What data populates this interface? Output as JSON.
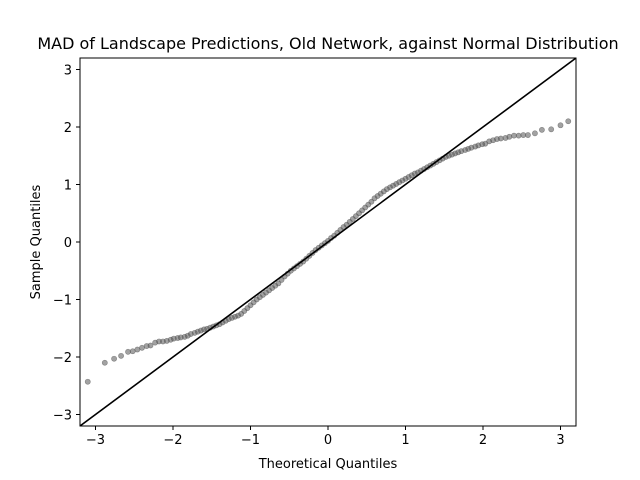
{
  "chart_data": {
    "type": "scatter",
    "title": "MAD of Landscape Predictions, Old Network, against Normal Distribution",
    "xlabel": "Theoretical Quantiles",
    "ylabel": "Sample Quantiles",
    "xlim": [
      -3.2,
      3.2
    ],
    "ylim": [
      -3.2,
      3.2
    ],
    "xticks": [
      "−3",
      "−2",
      "−1",
      "0",
      "1",
      "2",
      "3"
    ],
    "yticks": [
      "−3",
      "−2",
      "−1",
      "0",
      "1",
      "2",
      "3"
    ],
    "grid": false,
    "reference_line": {
      "slope": 1,
      "intercept": 0,
      "color": "#000000"
    },
    "marker_color": "#555555",
    "points": [
      [
        -3.1,
        -2.43
      ],
      [
        -2.88,
        -2.1
      ],
      [
        -2.76,
        -2.03
      ],
      [
        -2.67,
        -1.98
      ],
      [
        -2.58,
        -1.91
      ],
      [
        -2.52,
        -1.9
      ],
      [
        -2.46,
        -1.87
      ],
      [
        -2.4,
        -1.84
      ],
      [
        -2.34,
        -1.81
      ],
      [
        -2.29,
        -1.8
      ],
      [
        -2.23,
        -1.75
      ],
      [
        -2.18,
        -1.73
      ],
      [
        -2.13,
        -1.73
      ],
      [
        -2.08,
        -1.72
      ],
      [
        -2.03,
        -1.7
      ],
      [
        -1.99,
        -1.68
      ],
      [
        -1.94,
        -1.67
      ],
      [
        -1.9,
        -1.66
      ],
      [
        -1.85,
        -1.65
      ],
      [
        -1.81,
        -1.63
      ],
      [
        -1.77,
        -1.6
      ],
      [
        -1.72,
        -1.58
      ],
      [
        -1.68,
        -1.56
      ],
      [
        -1.64,
        -1.54
      ],
      [
        -1.6,
        -1.52
      ],
      [
        -1.56,
        -1.51
      ],
      [
        -1.52,
        -1.49
      ],
      [
        -1.48,
        -1.47
      ],
      [
        -1.44,
        -1.45
      ],
      [
        -1.4,
        -1.43
      ],
      [
        -1.36,
        -1.4
      ],
      [
        -1.32,
        -1.37
      ],
      [
        -1.28,
        -1.34
      ],
      [
        -1.24,
        -1.32
      ],
      [
        -1.2,
        -1.3
      ],
      [
        -1.16,
        -1.28
      ],
      [
        -1.12,
        -1.25
      ],
      [
        -1.08,
        -1.2
      ],
      [
        -1.04,
        -1.15
      ],
      [
        -1.0,
        -1.1
      ],
      [
        -0.96,
        -1.05
      ],
      [
        -0.92,
        -1.0
      ],
      [
        -0.88,
        -0.96
      ],
      [
        -0.84,
        -0.92
      ],
      [
        -0.8,
        -0.88
      ],
      [
        -0.76,
        -0.84
      ],
      [
        -0.72,
        -0.8
      ],
      [
        -0.68,
        -0.76
      ],
      [
        -0.64,
        -0.72
      ],
      [
        -0.6,
        -0.66
      ],
      [
        -0.56,
        -0.6
      ],
      [
        -0.52,
        -0.55
      ],
      [
        -0.48,
        -0.5
      ],
      [
        -0.44,
        -0.46
      ],
      [
        -0.4,
        -0.42
      ],
      [
        -0.36,
        -0.38
      ],
      [
        -0.32,
        -0.34
      ],
      [
        -0.28,
        -0.29
      ],
      [
        -0.24,
        -0.24
      ],
      [
        -0.2,
        -0.19
      ],
      [
        -0.16,
        -0.14
      ],
      [
        -0.12,
        -0.1
      ],
      [
        -0.08,
        -0.06
      ],
      [
        -0.04,
        -0.02
      ],
      [
        0.0,
        0.02
      ],
      [
        0.04,
        0.07
      ],
      [
        0.08,
        0.11
      ],
      [
        0.12,
        0.16
      ],
      [
        0.16,
        0.21
      ],
      [
        0.2,
        0.26
      ],
      [
        0.24,
        0.3
      ],
      [
        0.28,
        0.35
      ],
      [
        0.32,
        0.4
      ],
      [
        0.36,
        0.45
      ],
      [
        0.4,
        0.5
      ],
      [
        0.44,
        0.55
      ],
      [
        0.48,
        0.6
      ],
      [
        0.52,
        0.65
      ],
      [
        0.56,
        0.7
      ],
      [
        0.6,
        0.76
      ],
      [
        0.64,
        0.8
      ],
      [
        0.68,
        0.84
      ],
      [
        0.72,
        0.88
      ],
      [
        0.76,
        0.92
      ],
      [
        0.8,
        0.95
      ],
      [
        0.84,
        0.98
      ],
      [
        0.88,
        1.01
      ],
      [
        0.92,
        1.04
      ],
      [
        0.96,
        1.07
      ],
      [
        1.0,
        1.1
      ],
      [
        1.04,
        1.13
      ],
      [
        1.08,
        1.16
      ],
      [
        1.12,
        1.19
      ],
      [
        1.16,
        1.21
      ],
      [
        1.2,
        1.24
      ],
      [
        1.24,
        1.27
      ],
      [
        1.28,
        1.3
      ],
      [
        1.32,
        1.33
      ],
      [
        1.36,
        1.36
      ],
      [
        1.4,
        1.39
      ],
      [
        1.44,
        1.42
      ],
      [
        1.48,
        1.45
      ],
      [
        1.52,
        1.48
      ],
      [
        1.56,
        1.5
      ],
      [
        1.6,
        1.52
      ],
      [
        1.64,
        1.54
      ],
      [
        1.68,
        1.56
      ],
      [
        1.72,
        1.58
      ],
      [
        1.77,
        1.6
      ],
      [
        1.81,
        1.62
      ],
      [
        1.85,
        1.64
      ],
      [
        1.9,
        1.66
      ],
      [
        1.94,
        1.68
      ],
      [
        1.99,
        1.7
      ],
      [
        2.03,
        1.71
      ],
      [
        2.08,
        1.75
      ],
      [
        2.13,
        1.77
      ],
      [
        2.18,
        1.79
      ],
      [
        2.23,
        1.8
      ],
      [
        2.29,
        1.81
      ],
      [
        2.34,
        1.83
      ],
      [
        2.4,
        1.85
      ],
      [
        2.46,
        1.85
      ],
      [
        2.52,
        1.86
      ],
      [
        2.58,
        1.86
      ],
      [
        2.67,
        1.89
      ],
      [
        2.76,
        1.95
      ],
      [
        2.88,
        1.96
      ],
      [
        3.0,
        2.03
      ],
      [
        3.1,
        2.1
      ]
    ]
  }
}
